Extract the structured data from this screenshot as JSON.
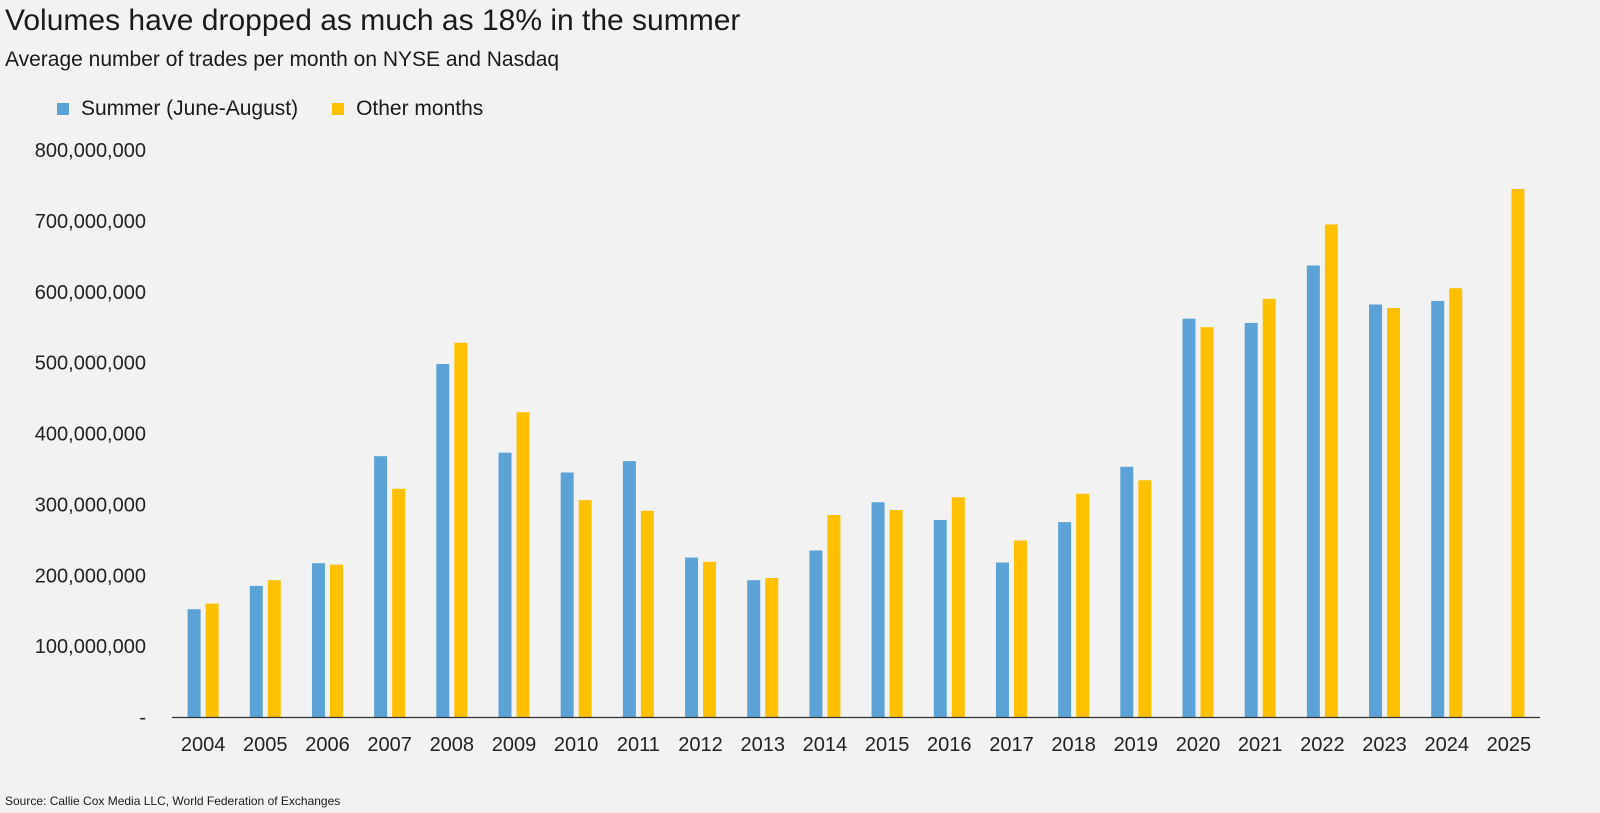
{
  "chart_data": {
    "type": "bar",
    "title": "Volumes have dropped as much as 18% in the summer",
    "subtitle": "Average number of trades per month on NYSE and Nasdaq",
    "source": "Source: Callie Cox Media LLC, World Federation of Exchanges",
    "categories": [
      "2004",
      "2005",
      "2006",
      "2007",
      "2008",
      "2009",
      "2010",
      "2011",
      "2012",
      "2013",
      "2014",
      "2015",
      "2016",
      "2017",
      "2018",
      "2019",
      "2020",
      "2021",
      "2022",
      "2023",
      "2024",
      "2025"
    ],
    "series": [
      {
        "name": "Summer (June-August)",
        "color": "#5ba3d6",
        "values": [
          152000000,
          185000000,
          217000000,
          368000000,
          498000000,
          373000000,
          345000000,
          361000000,
          225000000,
          193000000,
          235000000,
          303000000,
          278000000,
          218000000,
          275000000,
          353000000,
          562000000,
          556000000,
          637000000,
          582000000,
          587000000,
          null
        ]
      },
      {
        "name": "Other months",
        "color": "#ffc000",
        "values": [
          160000000,
          193000000,
          215000000,
          322000000,
          528000000,
          430000000,
          306000000,
          291000000,
          219000000,
          196000000,
          285000000,
          292000000,
          310000000,
          249000000,
          315000000,
          334000000,
          550000000,
          590000000,
          695000000,
          577000000,
          605000000,
          745000000
        ]
      }
    ],
    "yticks": [
      {
        "value": 0,
        "label": "-"
      },
      {
        "value": 100000000,
        "label": "100,000,000"
      },
      {
        "value": 200000000,
        "label": "200,000,000"
      },
      {
        "value": 300000000,
        "label": "300,000,000"
      },
      {
        "value": 400000000,
        "label": "400,000,000"
      },
      {
        "value": 500000000,
        "label": "500,000,000"
      },
      {
        "value": 600000000,
        "label": "600,000,000"
      },
      {
        "value": 700000000,
        "label": "700,000,000"
      },
      {
        "value": 800000000,
        "label": "800,000,000"
      }
    ],
    "ylim": [
      0,
      800000000
    ],
    "grid": false,
    "legend_position": "top-left",
    "xlabel": "",
    "ylabel": ""
  }
}
